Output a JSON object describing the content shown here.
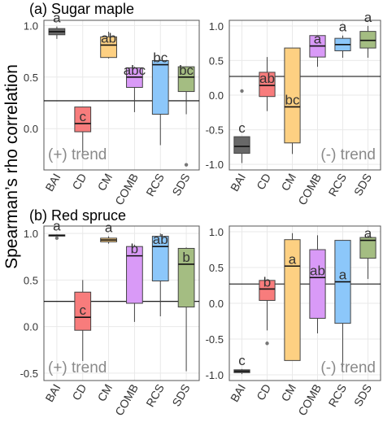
{
  "figure": {
    "ylabel": "Spearman’s rho correlation",
    "colors": {
      "BAI": "#686868",
      "CD": "#f87c7c",
      "CM": "#fdd082",
      "COMB": "#d99af7",
      "RCS": "#8cc7fa",
      "SDS": "#a4bd82",
      "grid": "#e9e9e9",
      "frame": "#555555",
      "refline": "#000000",
      "letters": "#333333",
      "trendtext": "#8a8a8a",
      "ticktext": "#333333"
    }
  },
  "chart_data": [
    {
      "type": "boxplot",
      "id": "a-pos",
      "title": "(a) Sugar maple",
      "trend": "(+) trend",
      "categories": [
        "BAI",
        "CD",
        "CM",
        "COMB",
        "RCS",
        "SDS"
      ],
      "ylim": [
        -0.4,
        1.05
      ],
      "yticks": [
        1.0,
        0.5,
        0.0
      ],
      "ytick_labels": [
        "1.0",
        "0.5",
        "0.0"
      ],
      "refline": 0.27,
      "grid": true,
      "boxes": [
        {
          "cat": "BAI",
          "whislo": 0.87,
          "q1": 0.91,
          "med": 0.94,
          "q3": 0.97,
          "whishi": 0.99,
          "outliers": [],
          "letter": "a"
        },
        {
          "cat": "CD",
          "whislo": -0.24,
          "q1": -0.03,
          "med": 0.05,
          "q3": 0.21,
          "whishi": 0.21,
          "outliers": [],
          "letter": "c"
        },
        {
          "cat": "CM",
          "whislo": 0.68,
          "q1": 0.69,
          "med": 0.81,
          "q3": 0.89,
          "whishi": 0.94,
          "outliers": [],
          "letter": "ab"
        },
        {
          "cat": "COMB",
          "whislo": 0.16,
          "q1": 0.4,
          "med": 0.5,
          "q3": 0.59,
          "whishi": 0.6,
          "outliers": [],
          "letter": "abc"
        },
        {
          "cat": "RCS",
          "whislo": -0.16,
          "q1": 0.14,
          "med": 0.62,
          "q3": 0.66,
          "whishi": 0.67,
          "outliers": [],
          "letter": "bc"
        },
        {
          "cat": "SDS",
          "whislo": 0.14,
          "q1": 0.36,
          "med": 0.5,
          "q3": 0.6,
          "whishi": 0.6,
          "outliers": [
            -0.35
          ],
          "letter": "bc"
        }
      ]
    },
    {
      "type": "boxplot",
      "id": "a-neg",
      "title": "",
      "trend": "(-) trend",
      "categories": [
        "BAI",
        "CD",
        "CM",
        "COMB",
        "RCS",
        "SDS"
      ],
      "ylim": [
        -1.08,
        1.08
      ],
      "yticks": [
        1.0,
        0.5,
        0.0,
        -0.5,
        -1.0
      ],
      "ytick_labels": [
        "1.0",
        "0.5",
        "0.0",
        "-0.5",
        "-1.0"
      ],
      "refline": 0.27,
      "grid": true,
      "boxes": [
        {
          "cat": "BAI",
          "whislo": -0.98,
          "q1": -0.84,
          "med": -0.74,
          "q3": -0.6,
          "whishi": -0.6,
          "outliers": [
            0.06
          ],
          "letter": "c"
        },
        {
          "cat": "CD",
          "whislo": -0.23,
          "q1": -0.02,
          "med": 0.14,
          "q3": 0.33,
          "whishi": 0.55,
          "outliers": [],
          "letter": "ab"
        },
        {
          "cat": "CM",
          "whislo": -0.85,
          "q1": -0.69,
          "med": -0.17,
          "q3": 0.68,
          "whishi": 0.68,
          "outliers": [],
          "letter": "bc"
        },
        {
          "cat": "COMB",
          "whislo": 0.41,
          "q1": 0.55,
          "med": 0.71,
          "q3": 0.86,
          "whishi": 0.86,
          "outliers": [],
          "letter": "a"
        },
        {
          "cat": "RCS",
          "whislo": 0.54,
          "q1": 0.64,
          "med": 0.73,
          "q3": 0.82,
          "whishi": 0.86,
          "outliers": [],
          "letter": "a"
        },
        {
          "cat": "SDS",
          "whislo": 0.54,
          "q1": 0.68,
          "med": 0.79,
          "q3": 0.92,
          "whishi": 1.0,
          "outliers": [],
          "letter": "a"
        }
      ]
    },
    {
      "type": "boxplot",
      "id": "b-pos",
      "title": "(b) Red spruce",
      "trend": "(+) trend",
      "categories": [
        "BAI",
        "CD",
        "CM",
        "COMB",
        "RCS",
        "SDS"
      ],
      "ylim": [
        -0.58,
        1.08
      ],
      "yticks": [
        1.0,
        0.5,
        0.0,
        -0.5
      ],
      "ytick_labels": [
        "1.0",
        "0.5",
        "0.0",
        "-0.5"
      ],
      "refline": 0.27,
      "grid": true,
      "boxes": [
        {
          "cat": "BAI",
          "whislo": 0.97,
          "q1": 0.975,
          "med": 0.98,
          "q3": 0.985,
          "whishi": 0.99,
          "outliers": [
            0.95
          ],
          "letter": "a"
        },
        {
          "cat": "CD",
          "whislo": -0.37,
          "q1": -0.04,
          "med": 0.1,
          "q3": 0.37,
          "whishi": 0.5,
          "outliers": [],
          "letter": "c"
        },
        {
          "cat": "CM",
          "whislo": 0.89,
          "q1": 0.91,
          "med": 0.93,
          "q3": 0.95,
          "whishi": 0.97,
          "outliers": [],
          "letter": "a"
        },
        {
          "cat": "COMB",
          "whislo": 0.05,
          "q1": 0.25,
          "med": 0.76,
          "q3": 0.86,
          "whishi": 0.88,
          "outliers": [],
          "letter": "b"
        },
        {
          "cat": "RCS",
          "whislo": 0.11,
          "q1": 0.49,
          "med": 0.86,
          "q3": 0.97,
          "whishi": 1.0,
          "outliers": [],
          "letter": "ab"
        },
        {
          "cat": "SDS",
          "whislo": -0.48,
          "q1": 0.21,
          "med": 0.67,
          "q3": 0.84,
          "whishi": 0.85,
          "outliers": [],
          "letter": "b"
        }
      ]
    },
    {
      "type": "boxplot",
      "id": "b-neg",
      "title": "",
      "trend": "(-) trend",
      "categories": [
        "BAI",
        "CD",
        "CM",
        "COMB",
        "RCS",
        "SDS"
      ],
      "ylim": [
        -1.08,
        1.08
      ],
      "yticks": [
        1.0,
        0.5,
        0.0,
        -0.5,
        -1.0
      ],
      "ytick_labels": [
        "1.0",
        "0.5",
        "0.0",
        "-0.5",
        "-1.0"
      ],
      "refline": 0.27,
      "grid": true,
      "boxes": [
        {
          "cat": "BAI",
          "whislo": -0.99,
          "q1": -0.97,
          "med": -0.95,
          "q3": -0.93,
          "whishi": -0.92,
          "outliers": [],
          "letter": "c"
        },
        {
          "cat": "CD",
          "whislo": -0.38,
          "q1": 0.04,
          "med": 0.2,
          "q3": 0.32,
          "whishi": 0.32,
          "outliers": [
            -0.56
          ],
          "letter": "b"
        },
        {
          "cat": "CM",
          "whislo": -0.8,
          "q1": -0.8,
          "med": 0.52,
          "q3": 0.89,
          "whishi": 0.98,
          "outliers": [],
          "letter": "a"
        },
        {
          "cat": "COMB",
          "whislo": -0.42,
          "q1": -0.21,
          "med": 0.36,
          "q3": 0.75,
          "whishi": 0.95,
          "outliers": [],
          "letter": "ab"
        },
        {
          "cat": "RCS",
          "whislo": -0.89,
          "q1": -0.28,
          "med": 0.3,
          "q3": 0.88,
          "whishi": 0.88,
          "outliers": [],
          "letter": "a"
        },
        {
          "cat": "SDS",
          "whislo": 0.34,
          "q1": 0.63,
          "med": 0.88,
          "q3": 0.92,
          "whishi": 0.95,
          "outliers": [],
          "letter": "a"
        }
      ]
    }
  ]
}
